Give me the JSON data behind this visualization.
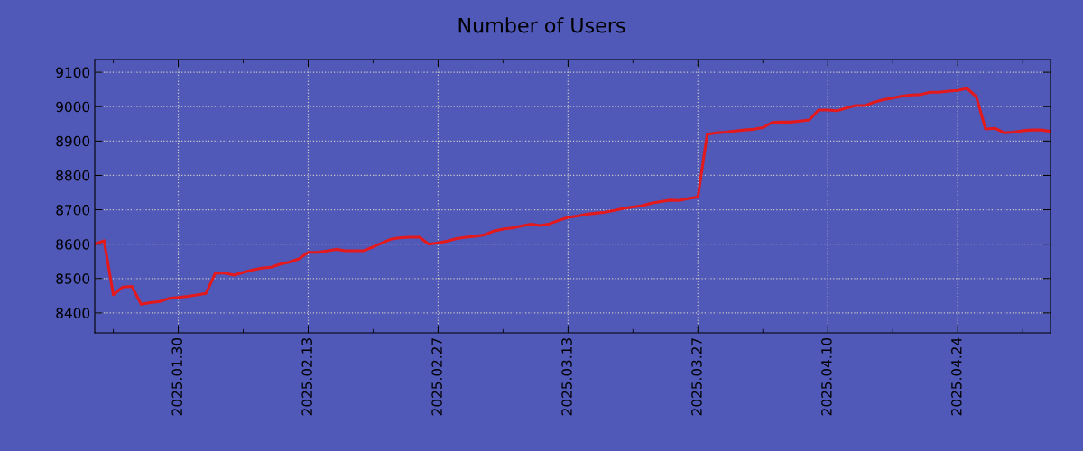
{
  "chart_data": {
    "type": "line",
    "title": "Number of Users",
    "x": [
      "2025-01-21",
      "2025-01-22",
      "2025-01-23",
      "2025-01-24",
      "2025-01-25",
      "2025-01-26",
      "2025-01-27",
      "2025-01-28",
      "2025-01-29",
      "2025-01-30",
      "2025-01-31",
      "2025-02-01",
      "2025-02-02",
      "2025-02-03",
      "2025-02-04",
      "2025-02-05",
      "2025-02-06",
      "2025-02-07",
      "2025-02-08",
      "2025-02-09",
      "2025-02-10",
      "2025-02-11",
      "2025-02-12",
      "2025-02-13",
      "2025-02-14",
      "2025-02-15",
      "2025-02-16",
      "2025-02-17",
      "2025-02-18",
      "2025-02-19",
      "2025-02-20",
      "2025-02-21",
      "2025-02-22",
      "2025-02-23",
      "2025-02-24",
      "2025-02-25",
      "2025-02-26",
      "2025-02-27",
      "2025-02-28",
      "2025-03-01",
      "2025-03-02",
      "2025-03-03",
      "2025-03-04",
      "2025-03-05",
      "2025-03-06",
      "2025-03-07",
      "2025-03-08",
      "2025-03-09",
      "2025-03-10",
      "2025-03-11",
      "2025-03-12",
      "2025-03-13",
      "2025-03-14",
      "2025-03-15",
      "2025-03-16",
      "2025-03-17",
      "2025-03-18",
      "2025-03-19",
      "2025-03-20",
      "2025-03-21",
      "2025-03-22",
      "2025-03-23",
      "2025-03-24",
      "2025-03-25",
      "2025-03-26",
      "2025-03-27",
      "2025-03-28",
      "2025-03-29",
      "2025-03-30",
      "2025-03-31",
      "2025-04-01",
      "2025-04-02",
      "2025-04-03",
      "2025-04-04",
      "2025-04-05",
      "2025-04-06",
      "2025-04-07",
      "2025-04-08",
      "2025-04-09",
      "2025-04-10",
      "2025-04-11",
      "2025-04-12",
      "2025-04-13",
      "2025-04-14",
      "2025-04-15",
      "2025-04-16",
      "2025-04-17",
      "2025-04-18",
      "2025-04-19",
      "2025-04-20",
      "2025-04-21",
      "2025-04-22",
      "2025-04-23",
      "2025-04-24",
      "2025-04-25",
      "2025-04-26",
      "2025-04-27",
      "2025-04-28",
      "2025-04-29",
      "2025-04-30",
      "2025-05-01",
      "2025-05-02",
      "2025-05-03",
      "2025-05-04"
    ],
    "series": [
      {
        "color": "#e3191c",
        "values": [
          8600,
          8610,
          8453,
          8475,
          8477,
          8425,
          8430,
          8433,
          8442,
          8445,
          8448,
          8452,
          8457,
          8516,
          8516,
          8510,
          8518,
          8525,
          8530,
          8533,
          8542,
          8548,
          8557,
          8576,
          8576,
          8580,
          8585,
          8581,
          8581,
          8581,
          8592,
          8604,
          8615,
          8619,
          8620,
          8620,
          8600,
          8604,
          8609,
          8616,
          8620,
          8623,
          8627,
          8638,
          8644,
          8647,
          8653,
          8658,
          8654,
          8659,
          8669,
          8678,
          8682,
          8687,
          8690,
          8693,
          8698,
          8704,
          8708,
          8712,
          8719,
          8724,
          8728,
          8727,
          8733,
          8737,
          8919,
          8924,
          8926,
          8929,
          8932,
          8934,
          8939,
          8954,
          8955,
          8955,
          8958,
          8961,
          8990,
          8990,
          8988,
          8996,
          9003,
          9003,
          9013,
          9020,
          9025,
          9031,
          9034,
          9035,
          9042,
          9042,
          9045,
          9047,
          9053,
          9029,
          8935,
          8937,
          8924,
          8926,
          8930,
          8932,
          8932,
          8928
        ]
      }
    ],
    "xlim": [
      "2025-01-21",
      "2025-05-04"
    ],
    "xticks": [
      {
        "value": "2025-01-23",
        "label": null
      },
      {
        "value": "2025-01-30",
        "label": "2025.01.30"
      },
      {
        "value": "2025-02-06",
        "label": null
      },
      {
        "value": "2025-02-13",
        "label": "2025.02.13"
      },
      {
        "value": "2025-02-20",
        "label": null
      },
      {
        "value": "2025-02-27",
        "label": "2025.02.27"
      },
      {
        "value": "2025-03-06",
        "label": null
      },
      {
        "value": "2025-03-13",
        "label": "2025.03.13"
      },
      {
        "value": "2025-03-20",
        "label": null
      },
      {
        "value": "2025-03-27",
        "label": "2025.03.27"
      },
      {
        "value": "2025-04-03",
        "label": null
      },
      {
        "value": "2025-04-10",
        "label": "2025.04.10"
      },
      {
        "value": "2025-04-17",
        "label": null
      },
      {
        "value": "2025-04-24",
        "label": "2025.04.24"
      },
      {
        "value": "2025-05-01",
        "label": null
      }
    ],
    "ylim": [
      8342,
      9137
    ],
    "yticks": [
      8400,
      8500,
      8600,
      8700,
      8800,
      8900,
      9000,
      9100
    ],
    "grid": true,
    "line_style": "solid",
    "marker": "none"
  }
}
